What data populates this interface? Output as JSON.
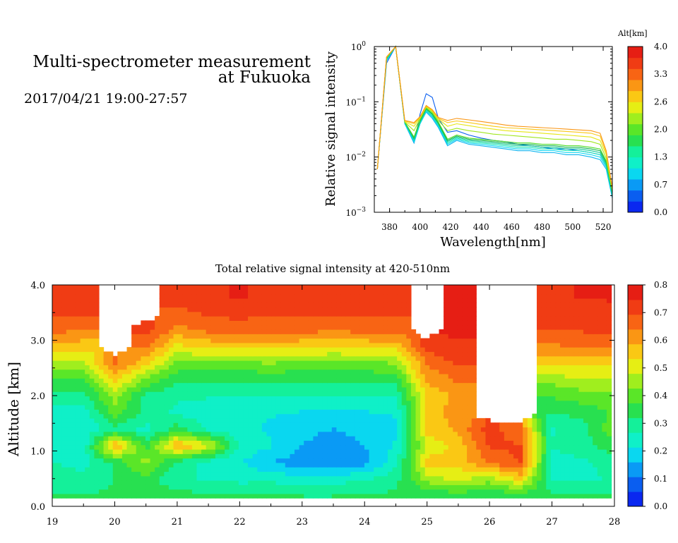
{
  "header": {
    "line1": "Multi-spectrometer measurement",
    "line2": "at Fukuoka",
    "datetime": "2017/04/21 19:00-27:57"
  },
  "colormap": [
    "#0a28f0",
    "#0a5ef0",
    "#0a9af5",
    "#0ad7f0",
    "#0ff0c8",
    "#14f09a",
    "#28e050",
    "#5ae628",
    "#a0ee1e",
    "#e6ee14",
    "#fac814",
    "#fa9614",
    "#f86414",
    "#f03c14",
    "#e61e14"
  ],
  "chart_data": [
    {
      "type": "line",
      "title": "",
      "xlabel": "Wavelength[nm]",
      "ylabel": "Relative signal intensity",
      "yscale": "log",
      "xlim": [
        370,
        526
      ],
      "ylim": [
        0.001,
        1
      ],
      "xticks": [
        380,
        400,
        420,
        440,
        460,
        480,
        500,
        520
      ],
      "yticks": [
        {
          "value": 1,
          "base": "10",
          "exp": "0"
        },
        {
          "value": 0.1,
          "base": "10",
          "exp": "−1"
        },
        {
          "value": 0.01,
          "base": "10",
          "exp": "−2"
        },
        {
          "value": 0.001,
          "base": "10",
          "exp": "−3"
        }
      ],
      "x": [
        372,
        378,
        384,
        390,
        396,
        400,
        404,
        408,
        412,
        418,
        424,
        432,
        440,
        448,
        456,
        464,
        472,
        480,
        488,
        496,
        504,
        512,
        518,
        522,
        526
      ],
      "colorbar": {
        "label": "Alt[km]",
        "range": [
          0.0,
          4.0
        ],
        "ticklabels": [
          "4.0",
          "3.3",
          "2.6",
          "2.0",
          "1.3",
          "0.7",
          "0.0"
        ]
      },
      "series": [
        {
          "altitude": 0.3,
          "color": "#0a5ef0",
          "values": [
            0.006,
            0.5,
            1.0,
            0.04,
            0.018,
            0.06,
            0.14,
            0.12,
            0.05,
            0.028,
            0.03,
            0.025,
            0.022,
            0.02,
            0.019,
            0.017,
            0.016,
            0.015,
            0.014,
            0.014,
            0.013,
            0.012,
            0.011,
            0.007,
            0.002
          ]
        },
        {
          "altitude": 0.7,
          "color": "#0ab4f0",
          "values": [
            0.006,
            0.55,
            1.0,
            0.04,
            0.018,
            0.04,
            0.065,
            0.05,
            0.034,
            0.016,
            0.02,
            0.017,
            0.016,
            0.015,
            0.014,
            0.013,
            0.013,
            0.012,
            0.012,
            0.011,
            0.011,
            0.01,
            0.009,
            0.006,
            0.0018
          ]
        },
        {
          "altitude": 0.9,
          "color": "#0ad7f0",
          "values": [
            0.006,
            0.55,
            1.0,
            0.04,
            0.019,
            0.04,
            0.068,
            0.053,
            0.036,
            0.017,
            0.021,
            0.018,
            0.017,
            0.016,
            0.015,
            0.014,
            0.014,
            0.013,
            0.013,
            0.012,
            0.012,
            0.011,
            0.01,
            0.0065,
            0.002
          ]
        },
        {
          "altitude": 1.1,
          "color": "#14e6b4",
          "values": [
            0.006,
            0.58,
            1.0,
            0.042,
            0.02,
            0.042,
            0.07,
            0.055,
            0.038,
            0.018,
            0.022,
            0.019,
            0.018,
            0.017,
            0.016,
            0.015,
            0.015,
            0.014,
            0.014,
            0.013,
            0.013,
            0.012,
            0.011,
            0.007,
            0.002
          ]
        },
        {
          "altitude": 1.4,
          "color": "#0fc896",
          "values": [
            0.006,
            0.6,
            1.0,
            0.042,
            0.021,
            0.044,
            0.073,
            0.058,
            0.04,
            0.019,
            0.023,
            0.02,
            0.019,
            0.018,
            0.017,
            0.016,
            0.016,
            0.015,
            0.015,
            0.014,
            0.014,
            0.013,
            0.012,
            0.0075,
            0.0022
          ]
        },
        {
          "altitude": 1.6,
          "color": "#14b450",
          "values": [
            0.006,
            0.62,
            1.0,
            0.043,
            0.022,
            0.045,
            0.075,
            0.06,
            0.041,
            0.02,
            0.024,
            0.021,
            0.02,
            0.019,
            0.018,
            0.017,
            0.017,
            0.016,
            0.016,
            0.015,
            0.015,
            0.014,
            0.013,
            0.008,
            0.0023
          ]
        },
        {
          "altitude": 2.0,
          "color": "#50dc28",
          "values": [
            0.006,
            0.62,
            1.0,
            0.043,
            0.023,
            0.047,
            0.077,
            0.062,
            0.043,
            0.021,
            0.025,
            0.022,
            0.021,
            0.02,
            0.019,
            0.018,
            0.018,
            0.017,
            0.017,
            0.016,
            0.016,
            0.015,
            0.014,
            0.0085,
            0.0024
          ]
        },
        {
          "altitude": 2.4,
          "color": "#a0e61e",
          "values": [
            0.006,
            0.63,
            1.0,
            0.043,
            0.03,
            0.05,
            0.08,
            0.065,
            0.046,
            0.03,
            0.033,
            0.03,
            0.028,
            0.026,
            0.025,
            0.024,
            0.023,
            0.022,
            0.021,
            0.021,
            0.02,
            0.019,
            0.017,
            0.0095,
            0.0025
          ]
        },
        {
          "altitude": 2.9,
          "color": "#e6e614",
          "values": [
            0.006,
            0.64,
            1.0,
            0.044,
            0.036,
            0.052,
            0.082,
            0.068,
            0.049,
            0.036,
            0.04,
            0.037,
            0.034,
            0.032,
            0.03,
            0.029,
            0.028,
            0.027,
            0.026,
            0.025,
            0.024,
            0.023,
            0.02,
            0.011,
            0.0026
          ]
        },
        {
          "altitude": 3.3,
          "color": "#fac814",
          "values": [
            0.006,
            0.64,
            1.0,
            0.045,
            0.04,
            0.053,
            0.084,
            0.07,
            0.05,
            0.042,
            0.045,
            0.042,
            0.039,
            0.036,
            0.034,
            0.033,
            0.032,
            0.031,
            0.03,
            0.029,
            0.028,
            0.027,
            0.024,
            0.012,
            0.0027
          ]
        },
        {
          "altitude": 3.7,
          "color": "#fa9614",
          "values": [
            0.006,
            0.65,
            1.0,
            0.046,
            0.042,
            0.054,
            0.086,
            0.072,
            0.052,
            0.046,
            0.05,
            0.047,
            0.044,
            0.041,
            0.038,
            0.036,
            0.035,
            0.034,
            0.033,
            0.032,
            0.031,
            0.03,
            0.027,
            0.013,
            0.0028
          ]
        }
      ]
    },
    {
      "type": "heatmap",
      "title": "Total relative signal intensity at 420-510nm",
      "xlabel": "",
      "ylabel": "Altitude [km]",
      "xlim": [
        19,
        28
      ],
      "ylim": [
        0.0,
        4.0
      ],
      "xticks": [
        "19",
        "20",
        "21",
        "22",
        "23",
        "24",
        "25",
        "26",
        "27",
        "28"
      ],
      "yticks": [
        "0.0",
        "1.0",
        "2.0",
        "3.0",
        "4.0"
      ],
      "colorbar": {
        "range": [
          0.0,
          0.8
        ],
        "ticklabels": [
          "0.8",
          "0.7",
          "0.6",
          "0.5",
          "0.4",
          "0.3",
          "0.2",
          "0.1",
          "0.0"
        ]
      },
      "data_x_range": [
        19.0,
        27.95
      ],
      "data_y_range": [
        0.15,
        4.0
      ],
      "missing_value_note": "white regions = no data",
      "times": [
        19.0,
        19.5,
        20.0,
        20.5,
        21.0,
        21.5,
        22.0,
        22.5,
        23.0,
        23.5,
        24.0,
        24.5,
        25.0,
        25.5,
        26.0,
        26.5,
        27.0,
        27.5,
        27.95
      ],
      "altitudes": [
        0.2,
        0.5,
        0.8,
        1.1,
        1.4,
        1.7,
        2.0,
        2.3,
        2.6,
        2.9,
        3.2,
        3.5,
        3.8
      ],
      "values": [
        [
          0.33,
          0.32,
          0.33,
          0.33,
          0.34,
          0.33,
          0.32,
          0.33,
          0.32,
          0.32,
          0.33,
          0.33,
          0.34,
          0.34,
          0.33,
          0.34,
          0.33,
          0.33,
          0.33
        ],
        [
          0.29,
          0.28,
          0.32,
          0.35,
          0.28,
          0.26,
          0.25,
          0.25,
          0.23,
          0.24,
          0.26,
          0.3,
          0.45,
          0.5,
          0.45,
          0.55,
          0.25,
          0.26,
          0.27
        ],
        [
          0.27,
          0.25,
          0.33,
          0.45,
          0.3,
          0.24,
          0.22,
          0.16,
          0.13,
          0.11,
          0.14,
          0.25,
          0.55,
          0.55,
          0.65,
          0.7,
          0.24,
          0.26,
          0.28
        ],
        [
          0.25,
          0.23,
          0.6,
          0.35,
          0.6,
          0.5,
          0.25,
          0.22,
          0.16,
          0.12,
          0.16,
          0.22,
          0.5,
          0.55,
          0.7,
          0.7,
          0.27,
          0.3,
          0.35
        ],
        [
          0.23,
          0.22,
          0.3,
          0.25,
          0.35,
          0.26,
          0.24,
          0.2,
          0.18,
          0.16,
          0.18,
          0.2,
          0.55,
          0.6,
          0.72,
          0.65,
          0.26,
          0.3,
          0.4
        ],
        [
          0.25,
          0.24,
          0.4,
          0.3,
          0.25,
          0.24,
          0.23,
          0.22,
          0.21,
          0.21,
          0.21,
          0.22,
          0.55,
          0.62,
          null,
          null,
          0.32,
          0.34,
          0.38
        ],
        [
          0.3,
          0.3,
          0.45,
          0.3,
          0.28,
          0.27,
          0.27,
          0.26,
          0.26,
          0.26,
          0.26,
          0.27,
          0.55,
          0.6,
          null,
          null,
          0.38,
          0.4,
          0.4
        ],
        [
          0.38,
          0.36,
          0.55,
          0.42,
          0.33,
          0.33,
          0.33,
          0.33,
          0.33,
          0.33,
          0.33,
          0.34,
          0.6,
          0.65,
          null,
          null,
          0.45,
          0.48,
          0.47
        ],
        [
          0.48,
          0.46,
          0.65,
          0.55,
          0.42,
          0.42,
          0.42,
          0.43,
          0.42,
          0.41,
          0.42,
          0.43,
          0.65,
          0.7,
          null,
          null,
          0.55,
          0.55,
          0.55
        ],
        [
          0.58,
          0.56,
          null,
          0.65,
          0.52,
          0.55,
          0.56,
          0.56,
          0.55,
          0.54,
          0.55,
          0.56,
          0.72,
          0.74,
          null,
          null,
          0.63,
          0.65,
          0.65
        ],
        [
          0.66,
          0.64,
          null,
          0.72,
          0.62,
          0.66,
          0.67,
          0.66,
          0.66,
          0.65,
          0.66,
          0.66,
          null,
          0.76,
          null,
          null,
          0.7,
          0.7,
          0.72
        ],
        [
          0.7,
          0.7,
          null,
          null,
          0.68,
          0.7,
          0.71,
          0.7,
          0.71,
          0.7,
          0.71,
          0.7,
          null,
          0.76,
          null,
          null,
          0.72,
          0.73,
          0.74
        ],
        [
          0.72,
          0.72,
          null,
          null,
          0.72,
          0.74,
          0.75,
          0.74,
          0.74,
          0.73,
          0.74,
          0.73,
          null,
          0.78,
          null,
          null,
          0.74,
          0.75,
          0.75
        ]
      ]
    }
  ]
}
